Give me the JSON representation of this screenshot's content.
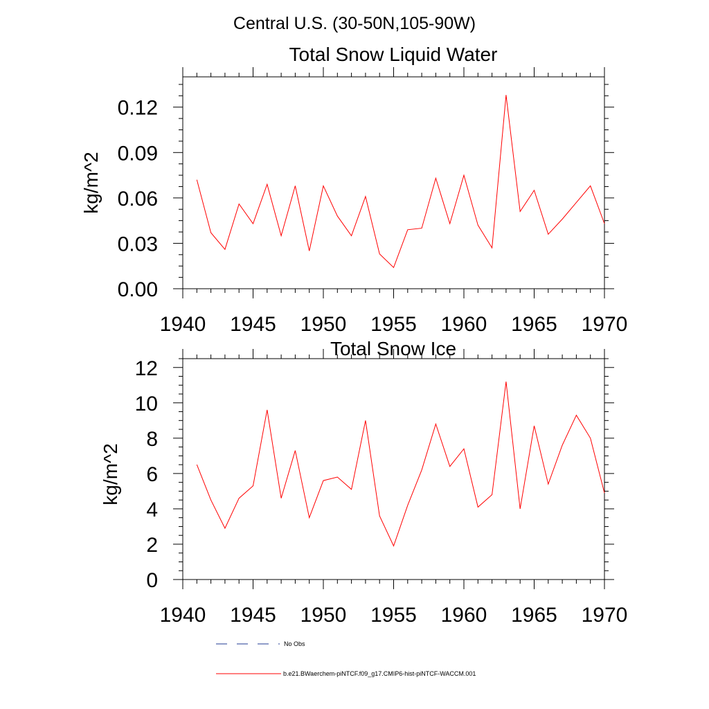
{
  "figure_title": "Central U.S. (30-50N,105-90W)",
  "legend": {
    "obs_label": "No Obs",
    "model_label": "b.e21.BWaerchem-piNTCF.f09_g17.CMIP6-hist-piNTCF-WACCM.001",
    "obs_color": "#1f3a93",
    "model_color": "#ff0000"
  },
  "chart_data": [
    {
      "type": "line",
      "title": "Total Snow Liquid Water",
      "xlabel": "",
      "ylabel": "kg/m^2",
      "xlim": [
        1940,
        1970
      ],
      "ylim": [
        0.0,
        0.14
      ],
      "x_ticks": [
        1940,
        1945,
        1950,
        1955,
        1960,
        1965,
        1970
      ],
      "x_tick_labels": [
        "1940",
        "1945",
        "1950",
        "1955",
        "1960",
        "1965",
        "1970"
      ],
      "y_ticks": [
        0.0,
        0.03,
        0.06,
        0.09,
        0.12
      ],
      "y_tick_labels": [
        "0.00",
        "0.03",
        "0.06",
        "0.09",
        "0.12"
      ],
      "grid": false,
      "series": [
        {
          "name": "b.e21.BWaerchem-piNTCF.f09_g17.CMIP6-hist-piNTCF-WACCM.001",
          "color": "#ff0000",
          "x": [
            1941,
            1942,
            1943,
            1944,
            1945,
            1946,
            1947,
            1948,
            1949,
            1950,
            1951,
            1952,
            1953,
            1954,
            1955,
            1956,
            1957,
            1958,
            1959,
            1960,
            1961,
            1962,
            1963,
            1964,
            1965,
            1966,
            1967,
            1968,
            1969,
            1970
          ],
          "y": [
            0.072,
            0.037,
            0.026,
            0.056,
            0.043,
            0.069,
            0.035,
            0.068,
            0.025,
            0.068,
            0.048,
            0.035,
            0.061,
            0.023,
            0.014,
            0.039,
            0.04,
            0.073,
            0.043,
            0.075,
            0.042,
            0.027,
            0.128,
            0.051,
            0.065,
            0.036,
            0.046,
            0.057,
            0.068,
            0.043
          ]
        }
      ]
    },
    {
      "type": "line",
      "title": "Total Snow Ice",
      "xlabel": "",
      "ylabel": "kg/m^2",
      "xlim": [
        1940,
        1970
      ],
      "ylim": [
        0,
        12.5
      ],
      "x_ticks": [
        1940,
        1945,
        1950,
        1955,
        1960,
        1965,
        1970
      ],
      "x_tick_labels": [
        "1940",
        "1945",
        "1950",
        "1955",
        "1960",
        "1965",
        "1970"
      ],
      "y_ticks": [
        0,
        2,
        4,
        6,
        8,
        10,
        12
      ],
      "y_tick_labels": [
        "0",
        "2",
        "4",
        "6",
        "8",
        "10",
        "12"
      ],
      "grid": false,
      "series": [
        {
          "name": "b.e21.BWaerchem-piNTCF.f09_g17.CMIP6-hist-piNTCF-WACCM.001",
          "color": "#ff0000",
          "x": [
            1941,
            1942,
            1943,
            1944,
            1945,
            1946,
            1947,
            1948,
            1949,
            1950,
            1951,
            1952,
            1953,
            1954,
            1955,
            1956,
            1957,
            1958,
            1959,
            1960,
            1961,
            1962,
            1963,
            1964,
            1965,
            1966,
            1967,
            1968,
            1969,
            1970
          ],
          "y": [
            6.5,
            4.5,
            2.9,
            4.6,
            5.3,
            9.6,
            4.6,
            7.3,
            3.5,
            5.6,
            5.8,
            5.1,
            9.0,
            3.6,
            1.9,
            4.2,
            6.2,
            8.8,
            6.4,
            7.4,
            4.1,
            4.8,
            11.2,
            4.0,
            8.7,
            5.4,
            7.6,
            9.3,
            8.0,
            4.9
          ]
        }
      ]
    }
  ]
}
